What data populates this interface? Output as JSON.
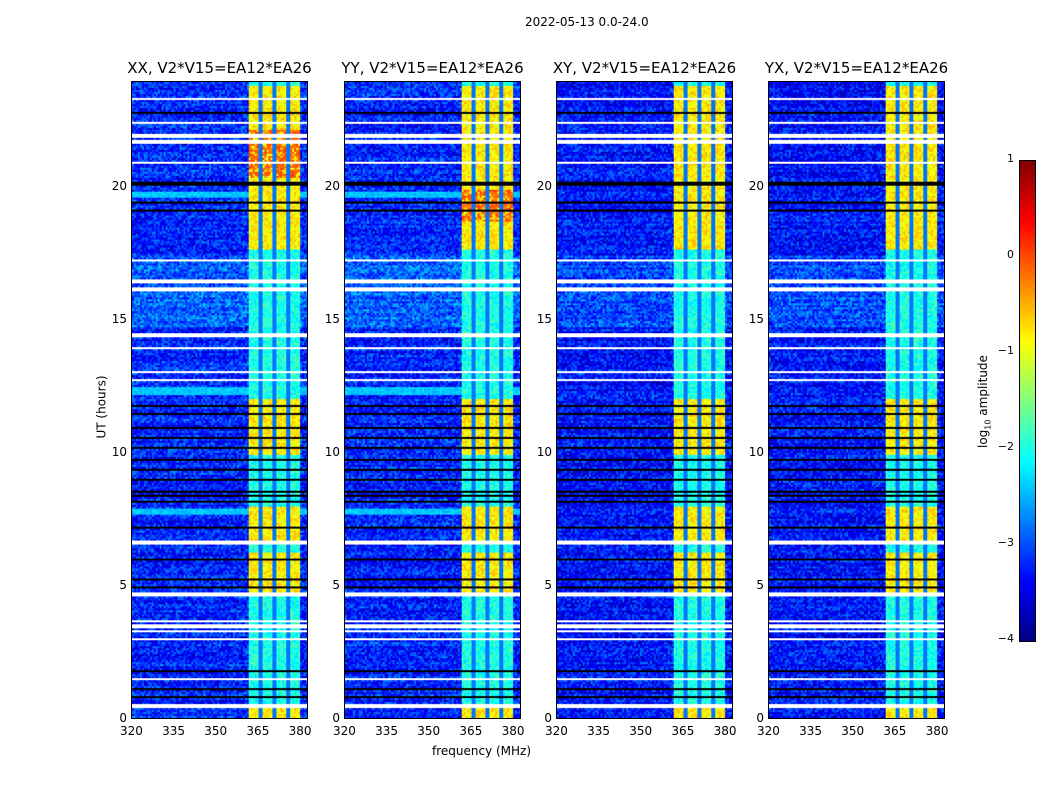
{
  "chart_data": {
    "type": "heatmap",
    "title": "2022-05-13 0.0-24.0",
    "xlabel": "frequency (MHz)",
    "ylabel": "UT (hours)",
    "xlim": [
      320,
      383
    ],
    "ylim": [
      0,
      24
    ],
    "xticks": [
      "320",
      "335",
      "350",
      "365",
      "380"
    ],
    "yticks": [
      "0",
      "5",
      "10",
      "15",
      "20"
    ],
    "colorbar": {
      "label": "log10 amplitude",
      "range": [
        -4,
        1
      ],
      "ticks": [
        "1",
        "0",
        "−1",
        "−2",
        "−3",
        "−4"
      ],
      "colormap": "jet"
    },
    "background_level": -3.2,
    "band": {
      "range_mhz": [
        362,
        380
      ],
      "subband_edges": [
        366,
        371,
        376
      ],
      "strong_level": -0.8,
      "weak_level": -2.0,
      "strong_hours": [
        [
          0,
          0.4
        ],
        [
          4.7,
          6.3
        ],
        [
          6.7,
          8
        ],
        [
          10,
          12.1
        ],
        [
          17.7,
          23.9
        ]
      ]
    },
    "flagged_hours": [
      0.5,
      1.5,
      3.0,
      3.3,
      3.5,
      3.7,
      4.7,
      6.65,
      12.8,
      13.1,
      14.0,
      14.5,
      16.2,
      16.5,
      17.3,
      21.0,
      21.8,
      22.0,
      22.5,
      23.4
    ],
    "dropout_hours": [
      0.8,
      1.1,
      1.8,
      5.0,
      5.3,
      6.0,
      7.2,
      8.2,
      8.4,
      8.6,
      9.0,
      9.4,
      9.8,
      10.2,
      10.6,
      11.0,
      11.5,
      11.8,
      19.2,
      19.5,
      20.2,
      22.9
    ],
    "panels": [
      {
        "title": "XX, V2*V15=EA12*EA26",
        "hot_hours": [
          20.4,
          22.2
        ]
      },
      {
        "title": "YY, V2*V15=EA12*EA26",
        "hot_hours": [
          18.8,
          20.0
        ]
      },
      {
        "title": "XY, V2*V15=EA12*EA26",
        "hot_hours": []
      },
      {
        "title": "YX, V2*V15=EA12*EA26",
        "hot_hours": []
      }
    ]
  }
}
